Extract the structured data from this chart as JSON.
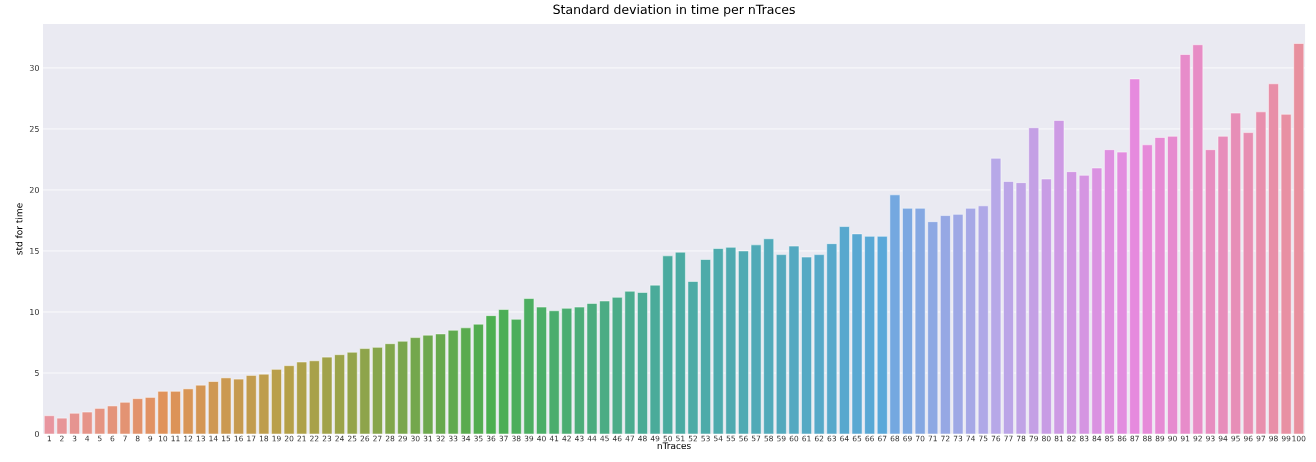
{
  "chart_data": {
    "type": "bar",
    "title": "Standard deviation in time per nTraces",
    "xlabel": "nTraces",
    "ylabel": "std for time",
    "categories": [
      "1",
      "2",
      "3",
      "4",
      "5",
      "6",
      "7",
      "8",
      "9",
      "10",
      "11",
      "12",
      "13",
      "14",
      "15",
      "16",
      "17",
      "18",
      "19",
      "20",
      "21",
      "22",
      "23",
      "24",
      "25",
      "26",
      "27",
      "28",
      "29",
      "30",
      "31",
      "32",
      "33",
      "34",
      "35",
      "36",
      "37",
      "38",
      "39",
      "40",
      "41",
      "42",
      "43",
      "44",
      "45",
      "46",
      "47",
      "48",
      "49",
      "50",
      "51",
      "52",
      "53",
      "54",
      "55",
      "56",
      "57",
      "58",
      "59",
      "60",
      "61",
      "62",
      "63",
      "64",
      "65",
      "66",
      "67",
      "68",
      "69",
      "70",
      "71",
      "72",
      "73",
      "74",
      "75",
      "76",
      "77",
      "78",
      "79",
      "80",
      "81",
      "82",
      "83",
      "84",
      "85",
      "86",
      "87",
      "88",
      "89",
      "90",
      "91",
      "92",
      "93",
      "94",
      "95",
      "96",
      "97",
      "98",
      "99",
      "100"
    ],
    "values": [
      1.5,
      1.3,
      1.7,
      1.8,
      2.1,
      2.3,
      2.6,
      2.9,
      3.0,
      3.5,
      3.5,
      3.7,
      4.0,
      4.3,
      4.6,
      4.5,
      4.8,
      4.9,
      5.3,
      5.6,
      5.9,
      6.0,
      6.3,
      6.5,
      6.7,
      7.0,
      7.1,
      7.4,
      7.6,
      7.9,
      8.1,
      8.2,
      8.5,
      8.7,
      9.0,
      9.7,
      10.2,
      9.4,
      11.1,
      10.4,
      10.1,
      10.3,
      10.4,
      10.7,
      10.9,
      11.2,
      11.7,
      11.6,
      12.2,
      14.6,
      14.9,
      12.5,
      14.3,
      15.2,
      15.3,
      15.0,
      15.5,
      16.0,
      14.7,
      15.4,
      14.5,
      14.7,
      15.6,
      17.0,
      16.4,
      16.2,
      16.2,
      19.6,
      18.5,
      18.5,
      17.4,
      17.9,
      18.0,
      18.5,
      18.7,
      22.6,
      20.7,
      20.6,
      25.1,
      20.9,
      25.7,
      21.5,
      21.2,
      21.8,
      23.3,
      23.1,
      29.1,
      23.7,
      24.3,
      24.4,
      31.1,
      31.9,
      23.3,
      24.4,
      26.3,
      24.7,
      26.4,
      28.7,
      26.2,
      32.0
    ],
    "colors": [
      "#e8959f",
      "#e79598",
      "#e69490",
      "#e69489",
      "#e59482",
      "#e4937a",
      "#e39373",
      "#e2926b",
      "#e19264",
      "#e0925a",
      "#dc9358",
      "#d89556",
      "#d49654",
      "#cf9853",
      "#cb9951",
      "#c69a50",
      "#c29c4e",
      "#be9d4c",
      "#b99f4a",
      "#b5a048",
      "#aea149",
      "#a8a149",
      "#a1a24a",
      "#9ba34a",
      "#94a44b",
      "#8ea44b",
      "#87a54c",
      "#81a64c",
      "#7aa64d",
      "#74a74d",
      "#6da84e",
      "#67a94e",
      "#60aa4f",
      "#5aab4f",
      "#53ac50",
      "#4caf50",
      "#4cae56",
      "#4cae5c",
      "#4cae61",
      "#4bae67",
      "#4bad6d",
      "#4bad72",
      "#4bad78",
      "#4bac7e",
      "#4bac84",
      "#4bac89",
      "#4bac8f",
      "#4aab95",
      "#4aab9a",
      "#4aab9f",
      "#4baba3",
      "#4caba6",
      "#4daba9",
      "#4eabad",
      "#4faab0",
      "#50aab3",
      "#51aab7",
      "#52aaba",
      "#53a9bd",
      "#54a9c1",
      "#55a9c4",
      "#56a9c8",
      "#57a9cb",
      "#58a8ce",
      "#59a8d2",
      "#59a8d5",
      "#5aa8d9",
      "#74a8e0",
      "#7ca8e1",
      "#85a8e2",
      "#8da8e3",
      "#96a8e4",
      "#9ea8e5",
      "#a6a8e6",
      "#afa8e7",
      "#b7a8e8",
      "#bba5e7",
      "#c0a3e6",
      "#c4a0e5",
      "#c89de5",
      "#cd9ae4",
      "#d197e3",
      "#d595e2",
      "#da92e1",
      "#de8fe0",
      "#e28ddf",
      "#e68ade",
      "#e68ad9",
      "#e68bd4",
      "#e68bcf",
      "#e78cca",
      "#e78cc5",
      "#e78dc0",
      "#e78dbb",
      "#e78eb7",
      "#e78eb2",
      "#e88fad",
      "#e88fa8",
      "#e890a3",
      "#e8909e"
    ],
    "ylim": [
      0,
      33.6
    ],
    "yticks": [
      0,
      5,
      10,
      15,
      20,
      25,
      30
    ],
    "grid": "y"
  }
}
